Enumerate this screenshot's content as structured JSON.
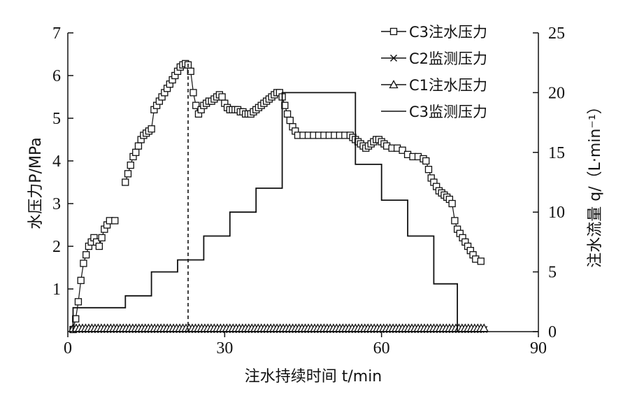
{
  "chart_data": {
    "type": "line",
    "xlabel": "注水持续时间 t/min",
    "ylabel_left": "水压力P/MPa",
    "ylabel_right": "注水流量 q/（L·min⁻¹）",
    "xlim": [
      0,
      90
    ],
    "ylim_left": [
      0,
      7
    ],
    "ylim_right": [
      0,
      25
    ],
    "x_ticks": [
      "0",
      "30",
      "60",
      "90"
    ],
    "y_left_ticks": [
      "1",
      "2",
      "3",
      "4",
      "5",
      "6",
      "7"
    ],
    "y_right_ticks": [
      "0",
      "5",
      "10",
      "15",
      "20",
      "25"
    ],
    "legend_position": "top-right",
    "grid": false,
    "series": [
      {
        "name": "C3注水压力",
        "marker": "square",
        "segments": [
          [
            [
              1,
              0.05
            ],
            [
              1.5,
              0.3
            ],
            [
              2,
              0.7
            ],
            [
              2.5,
              1.2
            ],
            [
              3,
              1.6
            ],
            [
              3.5,
              1.8
            ],
            [
              4,
              2.0
            ],
            [
              4.5,
              2.1
            ],
            [
              5,
              2.2
            ],
            [
              5.5,
              2.1
            ],
            [
              6,
              2.0
            ],
            [
              6.5,
              2.2
            ],
            [
              7,
              2.4
            ],
            [
              7.5,
              2.5
            ],
            [
              8,
              2.6
            ],
            [
              9,
              2.6
            ]
          ],
          [
            [
              11,
              3.5
            ],
            [
              11.5,
              3.7
            ],
            [
              12,
              3.9
            ],
            [
              12.5,
              4.1
            ],
            [
              13,
              4.2
            ],
            [
              13.5,
              4.35
            ],
            [
              14,
              4.5
            ],
            [
              14.5,
              4.6
            ],
            [
              15,
              4.65
            ],
            [
              15.5,
              4.7
            ],
            [
              16,
              4.75
            ],
            [
              16.5,
              5.2
            ],
            [
              17,
              5.3
            ],
            [
              17.5,
              5.4
            ],
            [
              18,
              5.5
            ],
            [
              18.5,
              5.6
            ],
            [
              19,
              5.7
            ],
            [
              19.5,
              5.8
            ],
            [
              20,
              5.9
            ],
            [
              20.5,
              6.0
            ],
            [
              21,
              6.1
            ],
            [
              21.5,
              6.2
            ],
            [
              22,
              6.25
            ],
            [
              22.5,
              6.28
            ],
            [
              23,
              6.25
            ],
            [
              23.5,
              6.1
            ],
            [
              24,
              5.6
            ],
            [
              24.5,
              5.3
            ],
            [
              25,
              5.1
            ],
            [
              25.5,
              5.2
            ],
            [
              26,
              5.3
            ],
            [
              26.5,
              5.35
            ],
            [
              27,
              5.4
            ],
            [
              27.5,
              5.4
            ],
            [
              28,
              5.45
            ],
            [
              28.5,
              5.5
            ],
            [
              29,
              5.55
            ],
            [
              29.5,
              5.5
            ],
            [
              30,
              5.35
            ],
            [
              30.5,
              5.25
            ],
            [
              31,
              5.2
            ],
            [
              31.5,
              5.2
            ],
            [
              32,
              5.2
            ],
            [
              32.5,
              5.2
            ],
            [
              33,
              5.15
            ],
            [
              33.5,
              5.15
            ],
            [
              34,
              5.1
            ],
            [
              34.5,
              5.1
            ],
            [
              35,
              5.1
            ],
            [
              35.5,
              5.15
            ],
            [
              36,
              5.2
            ],
            [
              36.5,
              5.25
            ],
            [
              37,
              5.3
            ],
            [
              37.5,
              5.35
            ],
            [
              38,
              5.4
            ],
            [
              38.5,
              5.45
            ],
            [
              39,
              5.5
            ],
            [
              39.5,
              5.55
            ],
            [
              40,
              5.6
            ],
            [
              40.5,
              5.6
            ],
            [
              41,
              5.5
            ],
            [
              41.5,
              5.3
            ],
            [
              42,
              5.1
            ],
            [
              42.5,
              4.95
            ],
            [
              43,
              4.8
            ],
            [
              43.5,
              4.7
            ],
            [
              44,
              4.6
            ],
            [
              45,
              4.6
            ],
            [
              46,
              4.6
            ],
            [
              47,
              4.6
            ],
            [
              48,
              4.6
            ],
            [
              49,
              4.6
            ],
            [
              50,
              4.6
            ],
            [
              51,
              4.6
            ],
            [
              52,
              4.6
            ],
            [
              53,
              4.6
            ],
            [
              54,
              4.6
            ],
            [
              54.5,
              4.55
            ],
            [
              55,
              4.5
            ],
            [
              55.5,
              4.45
            ],
            [
              56,
              4.4
            ],
            [
              56.5,
              4.35
            ],
            [
              57,
              4.3
            ],
            [
              57.5,
              4.35
            ],
            [
              58,
              4.4
            ],
            [
              58.5,
              4.45
            ],
            [
              59,
              4.5
            ],
            [
              59.5,
              4.5
            ],
            [
              60,
              4.45
            ],
            [
              60.5,
              4.4
            ],
            [
              61,
              4.35
            ],
            [
              62,
              4.3
            ],
            [
              63,
              4.3
            ],
            [
              64,
              4.25
            ],
            [
              65,
              4.15
            ],
            [
              66,
              4.1
            ],
            [
              67,
              4.1
            ],
            [
              68,
              4.05
            ],
            [
              68.5,
              4.0
            ],
            [
              69,
              3.8
            ],
            [
              69.5,
              3.6
            ],
            [
              70,
              3.5
            ],
            [
              70.5,
              3.4
            ],
            [
              71,
              3.3
            ],
            [
              71.5,
              3.25
            ],
            [
              72,
              3.2
            ],
            [
              72.5,
              3.15
            ],
            [
              73,
              3.1
            ],
            [
              73.5,
              3.0
            ],
            [
              74,
              2.6
            ],
            [
              74.5,
              2.4
            ],
            [
              75,
              2.3
            ],
            [
              75.5,
              2.2
            ],
            [
              76,
              2.1
            ],
            [
              76.5,
              2.0
            ],
            [
              77,
              1.9
            ],
            [
              77.5,
              1.8
            ],
            [
              78,
              1.7
            ],
            [
              79,
              1.65
            ]
          ]
        ]
      },
      {
        "name": "C2监测压力",
        "marker": "x",
        "segments": [
          [
            [
              1,
              0.05
            ],
            [
              80,
              0.05
            ]
          ]
        ]
      },
      {
        "name": "C1注水压力",
        "marker": "triangle",
        "segments": [
          [
            [
              1,
              0.08
            ],
            [
              80,
              0.08
            ]
          ]
        ]
      },
      {
        "name": "C3监测压力",
        "marker": "none",
        "axis": "right",
        "segments": [
          [
            [
              1,
              0
            ],
            [
              1,
              2
            ],
            [
              2,
              2
            ],
            [
              2,
              2
            ],
            [
              11,
              2
            ],
            [
              11,
              3
            ],
            [
              16,
              3
            ],
            [
              16,
              5
            ],
            [
              21,
              5
            ],
            [
              21,
              6
            ],
            [
              26,
              6
            ],
            [
              26,
              8
            ],
            [
              31,
              8
            ],
            [
              31,
              10
            ],
            [
              36,
              10
            ],
            [
              36,
              12
            ],
            [
              41,
              12
            ],
            [
              41,
              20
            ],
            [
              55,
              20
            ],
            [
              55,
              14
            ],
            [
              60,
              14
            ],
            [
              60,
              11
            ],
            [
              65,
              11
            ],
            [
              65,
              8
            ],
            [
              70,
              8
            ],
            [
              70,
              4
            ],
            [
              74.5,
              4
            ],
            [
              74.5,
              0
            ],
            [
              80,
              0
            ]
          ]
        ]
      }
    ],
    "annotations": [
      {
        "type": "dashed-vertical",
        "x": 23,
        "y_from": 0,
        "y_to": 6.28
      }
    ]
  }
}
